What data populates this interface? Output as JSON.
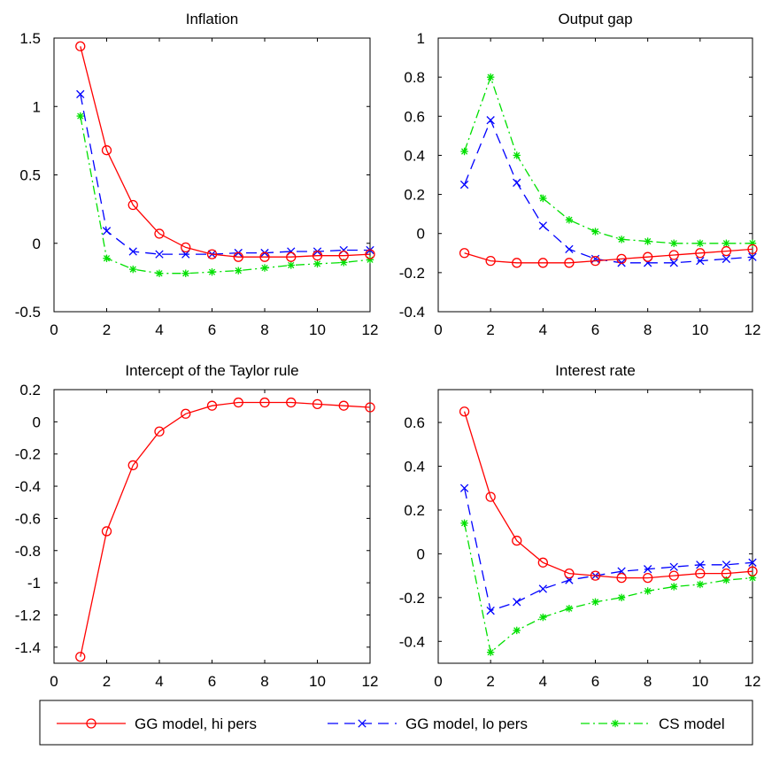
{
  "chart_data": [
    {
      "type": "line",
      "title": "Inflation",
      "x": [
        1,
        2,
        3,
        4,
        5,
        6,
        7,
        8,
        9,
        10,
        11,
        12
      ],
      "xlim": [
        0,
        12
      ],
      "ylim": [
        -0.5,
        1.5
      ],
      "xticks": [
        0,
        2,
        4,
        6,
        8,
        10,
        12
      ],
      "yticks": [
        -0.5,
        0,
        0.5,
        1,
        1.5
      ],
      "ytick_labels": [
        "-0.5",
        "0",
        "0.5",
        "1",
        "1.5"
      ],
      "series": [
        {
          "name": "GG model, hi pers",
          "values": [
            1.44,
            0.68,
            0.28,
            0.07,
            -0.03,
            -0.08,
            -0.1,
            -0.1,
            -0.1,
            -0.09,
            -0.09,
            -0.08
          ]
        },
        {
          "name": "GG model, lo pers",
          "values": [
            1.09,
            0.09,
            -0.06,
            -0.08,
            -0.08,
            -0.08,
            -0.07,
            -0.07,
            -0.06,
            -0.06,
            -0.05,
            -0.05
          ]
        },
        {
          "name": "CS model",
          "values": [
            0.93,
            -0.11,
            -0.19,
            -0.22,
            -0.22,
            -0.21,
            -0.2,
            -0.18,
            -0.16,
            -0.15,
            -0.14,
            -0.12
          ]
        }
      ]
    },
    {
      "type": "line",
      "title": "Output gap",
      "x": [
        1,
        2,
        3,
        4,
        5,
        6,
        7,
        8,
        9,
        10,
        11,
        12
      ],
      "xlim": [
        0,
        12
      ],
      "ylim": [
        -0.4,
        1
      ],
      "xticks": [
        0,
        2,
        4,
        6,
        8,
        10,
        12
      ],
      "yticks": [
        -0.4,
        -0.2,
        0,
        0.2,
        0.4,
        0.6,
        0.8,
        1
      ],
      "ytick_labels": [
        "-0.4",
        "-0.2",
        "0",
        "0.2",
        "0.4",
        "0.6",
        "0.8",
        "1"
      ],
      "series": [
        {
          "name": "GG model, hi pers",
          "values": [
            -0.1,
            -0.14,
            -0.15,
            -0.15,
            -0.15,
            -0.14,
            -0.13,
            -0.12,
            -0.11,
            -0.1,
            -0.09,
            -0.08
          ]
        },
        {
          "name": "GG model, lo pers",
          "values": [
            0.25,
            0.58,
            0.26,
            0.04,
            -0.08,
            -0.13,
            -0.15,
            -0.15,
            -0.15,
            -0.14,
            -0.13,
            -0.12
          ]
        },
        {
          "name": "CS model",
          "values": [
            0.42,
            0.8,
            0.4,
            0.18,
            0.07,
            0.01,
            -0.03,
            -0.04,
            -0.05,
            -0.05,
            -0.05,
            -0.05
          ]
        }
      ]
    },
    {
      "type": "line",
      "title": "Intercept of the Taylor rule",
      "x": [
        1,
        2,
        3,
        4,
        5,
        6,
        7,
        8,
        9,
        10,
        11,
        12
      ],
      "xlim": [
        0,
        12
      ],
      "ylim": [
        -1.5,
        0.2
      ],
      "xticks": [
        0,
        2,
        4,
        6,
        8,
        10,
        12
      ],
      "yticks": [
        -1.4,
        -1.2,
        -1,
        -0.8,
        -0.6,
        -0.4,
        -0.2,
        0,
        0.2
      ],
      "ytick_labels": [
        "-1.4",
        "-1.2",
        "-1",
        "-0.8",
        "-0.6",
        "-0.4",
        "-0.2",
        "0",
        "0.2"
      ],
      "series": [
        {
          "name": "GG model, hi pers",
          "values": [
            -1.46,
            -0.68,
            -0.27,
            -0.06,
            0.05,
            0.1,
            0.12,
            0.12,
            0.12,
            0.11,
            0.1,
            0.09
          ]
        }
      ]
    },
    {
      "type": "line",
      "title": "Interest rate",
      "x": [
        1,
        2,
        3,
        4,
        5,
        6,
        7,
        8,
        9,
        10,
        11,
        12
      ],
      "xlim": [
        0,
        12
      ],
      "ylim": [
        -0.5,
        0.75
      ],
      "xticks": [
        0,
        2,
        4,
        6,
        8,
        10,
        12
      ],
      "yticks": [
        -0.4,
        -0.2,
        0,
        0.2,
        0.4,
        0.6
      ],
      "ytick_labels": [
        "-0.4",
        "-0.2",
        "0",
        "0.2",
        "0.4",
        "0.6"
      ],
      "series": [
        {
          "name": "GG model, hi pers",
          "values": [
            0.65,
            0.26,
            0.06,
            -0.04,
            -0.09,
            -0.1,
            -0.11,
            -0.11,
            -0.1,
            -0.09,
            -0.09,
            -0.08
          ]
        },
        {
          "name": "GG model, lo pers",
          "values": [
            0.3,
            -0.26,
            -0.22,
            -0.16,
            -0.12,
            -0.1,
            -0.08,
            -0.07,
            -0.06,
            -0.05,
            -0.05,
            -0.04
          ]
        },
        {
          "name": "CS model",
          "values": [
            0.14,
            -0.45,
            -0.35,
            -0.29,
            -0.25,
            -0.22,
            -0.2,
            -0.17,
            -0.15,
            -0.14,
            -0.12,
            -0.11
          ]
        }
      ]
    }
  ],
  "series_styles": [
    {
      "name": "GG model, hi pers",
      "color": "#ff0000",
      "dash": "",
      "marker": "circle"
    },
    {
      "name": "GG model, lo pers",
      "color": "#0000ff",
      "dash": "12,7",
      "marker": "x"
    },
    {
      "name": "CS model",
      "color": "#00e000",
      "dash": "10,4,2,4",
      "marker": "star"
    }
  ],
  "legend": {
    "entries": [
      "GG model, hi pers",
      "GG model, lo pers",
      "CS model"
    ]
  }
}
